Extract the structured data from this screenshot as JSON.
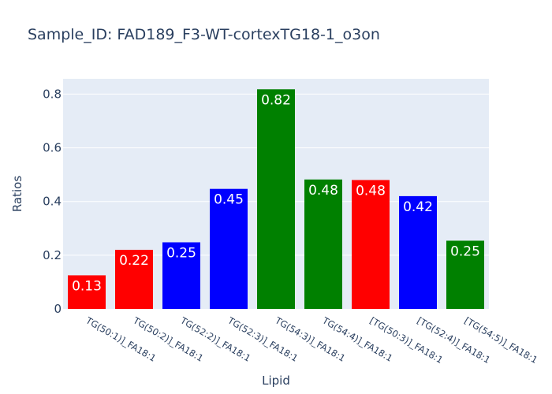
{
  "chart_data": {
    "type": "bar",
    "title": "Sample_ID: FAD189_F3-WT-cortexTG18-1_o3on",
    "xlabel": "Lipid",
    "ylabel": "Ratios",
    "categories": [
      "TG(50:1)]_FA18:1",
      "TG(50:2)]_FA18:1",
      "TG(52:2)]_FA18:1",
      "TG(52:3)]_FA18:1",
      "TG(54:3)]_FA18:1",
      "TG(54:4)]_FA18:1",
      "[TG(50:3)]_FA18:1",
      "[TG(52:4)]_FA18:1",
      "[TG(54:5)]_FA18:1"
    ],
    "values": [
      0.125,
      0.22,
      0.248,
      0.447,
      0.818,
      0.482,
      0.48,
      0.42,
      0.254
    ],
    "value_labels": [
      "0.13",
      "0.22",
      "0.25",
      "0.45",
      "0.82",
      "0.48",
      "0.48",
      "0.42",
      "0.25"
    ],
    "colors": [
      "#ff0000",
      "#ff0000",
      "#0000ff",
      "#0000ff",
      "#008000",
      "#008000",
      "#ff0000",
      "#0000ff",
      "#008000"
    ],
    "ylim": [
      0,
      0.857
    ],
    "yticks": [
      0,
      0.2,
      0.4,
      0.6,
      0.8
    ],
    "ytick_labels": [
      "0",
      "0.2",
      "0.4",
      "0.6",
      "0.8"
    ],
    "grid": true,
    "legend": "none",
    "plot_background": "#e5ecf6"
  }
}
